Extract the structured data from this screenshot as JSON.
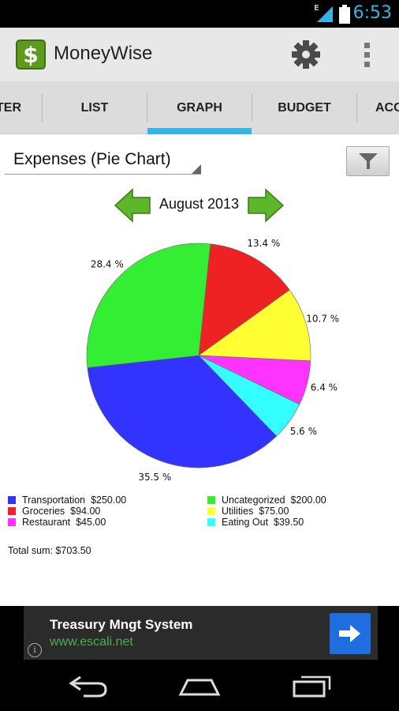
{
  "status_bar": {
    "time": "6:53",
    "network": "E",
    "signal_icon": "signal-icon",
    "battery_icon": "battery-icon"
  },
  "app": {
    "title": "MoneyWise",
    "icon_glyph": "$",
    "settings_icon": "gear-icon",
    "overflow_icon": "overflow-menu-icon"
  },
  "tabs": [
    {
      "label": "TER",
      "active": false
    },
    {
      "label": "LIST",
      "active": false
    },
    {
      "label": "GRAPH",
      "active": true
    },
    {
      "label": "BUDGET",
      "active": false
    },
    {
      "label": "ACC",
      "active": false
    }
  ],
  "graph": {
    "chart_selector": "Expenses (Pie Chart)",
    "filter_icon": "filter-icon",
    "period": "August 2013",
    "prev_icon": "left-arrow-icon",
    "next_icon": "right-arrow-icon"
  },
  "chart_data": {
    "type": "pie",
    "slices": [
      {
        "label": "Transportation",
        "amount": "$250.00",
        "percent": 35.5,
        "percent_label": "35.5 %",
        "color": "#3333ff"
      },
      {
        "label": "Uncategorized",
        "amount": "$200.00",
        "percent": 28.4,
        "percent_label": "28.4 %",
        "color": "#33ee33"
      },
      {
        "label": "Groceries",
        "amount": "$94.00",
        "percent": 13.4,
        "percent_label": "13.4 %",
        "color": "#ee2222"
      },
      {
        "label": "Utilities",
        "amount": "$75.00",
        "percent": 10.7,
        "percent_label": "10.7 %",
        "color": "#ffff33"
      },
      {
        "label": "Restaurant",
        "amount": "$45.00",
        "percent": 6.4,
        "percent_label": "6.4 %",
        "color": "#ff33ff"
      },
      {
        "label": "Eating Out",
        "amount": "$39.50",
        "percent": 5.6,
        "percent_label": "5.6 %",
        "color": "#33ffff"
      }
    ],
    "total": "Total sum: $703.50"
  },
  "ad": {
    "title": "Treasury Mngt System",
    "url": "www.escali.net",
    "info_glyph": "i",
    "go_icon": "arrow-right-icon"
  },
  "nav": {
    "back_icon": "back-icon",
    "home_icon": "home-icon",
    "recents_icon": "recent-apps-icon"
  }
}
